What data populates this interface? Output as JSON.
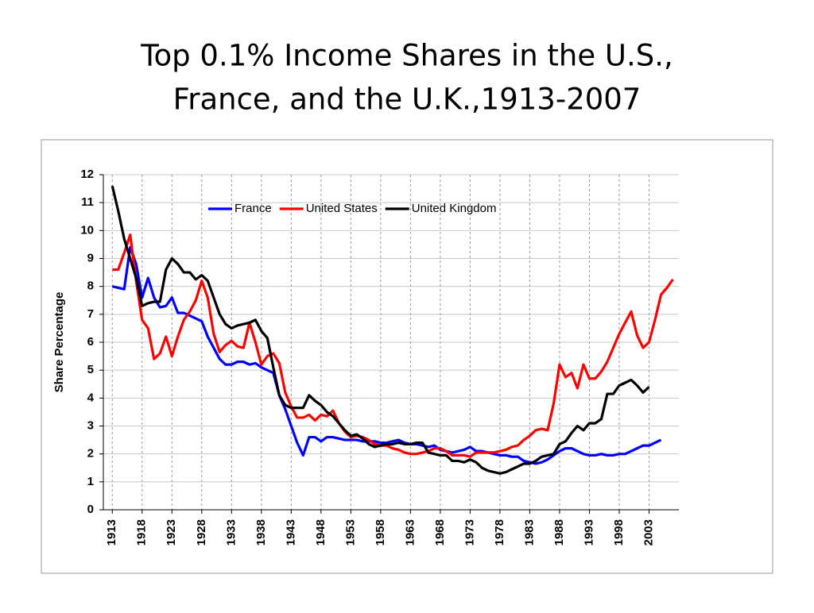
{
  "chart_data": {
    "type": "line",
    "title_lines": [
      "Top 0.1% Income Shares in the U.S.,",
      "France, and the U.K.,1913-2007"
    ],
    "ylabel": "Share Percentage",
    "x": [
      1913,
      1914,
      1915,
      1916,
      1917,
      1918,
      1919,
      1920,
      1921,
      1922,
      1923,
      1924,
      1925,
      1926,
      1927,
      1928,
      1929,
      1930,
      1931,
      1932,
      1933,
      1934,
      1935,
      1936,
      1937,
      1938,
      1939,
      1940,
      1941,
      1942,
      1943,
      1944,
      1945,
      1946,
      1947,
      1948,
      1949,
      1950,
      1951,
      1952,
      1953,
      1954,
      1955,
      1956,
      1957,
      1958,
      1959,
      1960,
      1961,
      1962,
      1963,
      1964,
      1965,
      1966,
      1967,
      1968,
      1969,
      1970,
      1971,
      1972,
      1973,
      1974,
      1975,
      1976,
      1977,
      1978,
      1979,
      1980,
      1981,
      1982,
      1983,
      1984,
      1985,
      1986,
      1987,
      1988,
      1989,
      1990,
      1991,
      1992,
      1993,
      1994,
      1995,
      1996,
      1997,
      1998,
      1999,
      2000,
      2001,
      2002,
      2003,
      2004,
      2005,
      2006,
      2007
    ],
    "series": [
      {
        "name": "France",
        "color": "#0000ff",
        "values": [
          8.0,
          7.95,
          7.9,
          9.4,
          8.8,
          7.6,
          8.3,
          7.6,
          7.25,
          7.3,
          7.6,
          7.05,
          7.05,
          6.95,
          6.85,
          6.75,
          6.2,
          5.8,
          5.4,
          5.2,
          5.2,
          5.3,
          5.3,
          5.2,
          5.25,
          5.1,
          5.0,
          4.9,
          4.1,
          3.6,
          3.0,
          2.4,
          1.95,
          2.6,
          2.6,
          2.45,
          2.6,
          2.6,
          2.55,
          2.5,
          2.5,
          2.5,
          2.45,
          2.45,
          2.45,
          2.4,
          2.4,
          2.45,
          2.5,
          2.4,
          2.35,
          2.35,
          2.3,
          2.25,
          2.3,
          2.15,
          2.1,
          2.05,
          2.1,
          2.15,
          2.25,
          2.1,
          2.1,
          2.05,
          2.0,
          1.95,
          1.95,
          1.9,
          1.9,
          1.75,
          1.7,
          1.65,
          1.7,
          1.8,
          1.95,
          2.1,
          2.2,
          2.2,
          2.1,
          2.0,
          1.95,
          1.95,
          2.0,
          1.95,
          1.95,
          2.0,
          2.0,
          2.1,
          2.2,
          2.3,
          2.3,
          2.4,
          2.5,
          null,
          null
        ]
      },
      {
        "name": "United States",
        "color": "#ff0000",
        "values": [
          8.6,
          8.6,
          9.2,
          9.85,
          8.2,
          6.8,
          6.5,
          5.4,
          5.6,
          6.2,
          5.5,
          6.2,
          6.8,
          7.1,
          7.5,
          8.2,
          7.6,
          6.3,
          5.65,
          5.9,
          6.05,
          5.85,
          5.8,
          6.7,
          6.0,
          5.2,
          5.5,
          5.6,
          5.25,
          4.2,
          3.7,
          3.3,
          3.3,
          3.4,
          3.2,
          3.4,
          3.35,
          3.55,
          3.1,
          2.8,
          2.6,
          2.65,
          2.6,
          2.5,
          2.35,
          2.3,
          2.3,
          2.2,
          2.15,
          2.05,
          2.0,
          2.0,
          2.05,
          2.1,
          2.2,
          2.2,
          2.1,
          1.95,
          1.95,
          1.95,
          1.9,
          2.05,
          2.05,
          2.05,
          2.05,
          2.1,
          2.15,
          2.25,
          2.3,
          2.5,
          2.65,
          2.85,
          2.9,
          2.85,
          3.8,
          5.2,
          4.75,
          4.9,
          4.35,
          5.2,
          4.7,
          4.7,
          4.95,
          5.3,
          5.8,
          6.3,
          6.7,
          7.1,
          6.25,
          5.8,
          6.0,
          6.8,
          7.7,
          7.95,
          8.25
        ]
      },
      {
        "name": "United Kingdom",
        "color": "#000000",
        "values": [
          11.6,
          10.7,
          9.7,
          9.0,
          8.3,
          7.3,
          7.4,
          7.45,
          7.45,
          8.6,
          9.0,
          8.8,
          8.5,
          8.5,
          8.25,
          8.4,
          8.2,
          7.6,
          7.0,
          6.65,
          6.5,
          6.6,
          6.65,
          6.7,
          6.8,
          6.4,
          6.15,
          5.1,
          4.1,
          3.75,
          3.65,
          3.65,
          3.65,
          4.1,
          3.9,
          3.75,
          3.5,
          3.35,
          3.1,
          2.85,
          2.65,
          2.7,
          2.55,
          2.35,
          2.25,
          2.3,
          2.35,
          2.35,
          2.4,
          2.35,
          2.35,
          2.4,
          2.4,
          2.05,
          2.0,
          1.95,
          1.95,
          1.75,
          1.75,
          1.7,
          1.8,
          1.7,
          1.5,
          1.4,
          1.35,
          1.3,
          1.35,
          1.45,
          1.55,
          1.65,
          1.65,
          1.75,
          1.9,
          1.95,
          2.0,
          2.35,
          2.45,
          2.75,
          3.0,
          2.85,
          3.1,
          3.1,
          3.25,
          4.15,
          4.15,
          4.45,
          4.55,
          4.65,
          4.45,
          4.2,
          4.4,
          null,
          null,
          null,
          null
        ]
      }
    ],
    "xlim": [
      1911.5,
      2008
    ],
    "xticks": [
      1913,
      1918,
      1923,
      1928,
      1933,
      1938,
      1943,
      1948,
      1953,
      1958,
      1963,
      1968,
      1973,
      1978,
      1983,
      1988,
      1993,
      1998,
      2003
    ],
    "ylim": [
      0,
      12
    ],
    "yticks": [
      0,
      1,
      2,
      3,
      4,
      5,
      6,
      7,
      8,
      9,
      10,
      11,
      12
    ],
    "grid": true,
    "legend": "top"
  }
}
